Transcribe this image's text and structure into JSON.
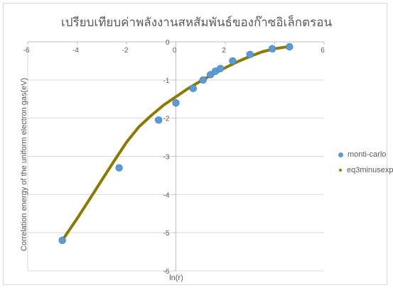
{
  "chart_data": {
    "type": "scatter",
    "title": "เปรียบเทียบค่าพลังงานสหสัมพันธ์ของก๊าซอิเล็กตรอน",
    "xlabel": "ln(r)",
    "ylabel": "Correlation energy of the uniform electron gas(eV)",
    "xlim": [
      -6,
      6
    ],
    "ylim": [
      -6,
      0
    ],
    "x_ticks": [
      -6,
      -4,
      -2,
      0,
      2,
      4,
      6
    ],
    "y_ticks": [
      0,
      -1,
      -2,
      -3,
      -4,
      -5,
      -6
    ],
    "grid": "horizontal",
    "legend_position": "right",
    "series": [
      {
        "name": "monti-carlo",
        "color": "#5b9bd5",
        "marker": "circle",
        "x": [
          -4.6,
          -2.3,
          -0.7,
          0.0,
          0.7,
          1.1,
          1.4,
          1.6,
          1.8,
          2.3,
          3.0,
          3.9,
          4.6
        ],
        "y": [
          -5.2,
          -3.3,
          -2.05,
          -1.6,
          -1.22,
          -1.0,
          -0.86,
          -0.77,
          -0.7,
          -0.5,
          -0.33,
          -0.18,
          -0.13
        ]
      },
      {
        "name": "eq3minusexp",
        "color": "#8c7a00",
        "marker": "line",
        "x": [
          -4.6,
          -4.0,
          -3.5,
          -3.0,
          -2.5,
          -2.0,
          -1.5,
          -1.0,
          -0.5,
          0.0,
          0.5,
          1.0,
          1.5,
          2.0,
          2.5,
          3.0,
          3.5,
          4.0,
          4.6
        ],
        "y": [
          -5.2,
          -4.63,
          -4.13,
          -3.62,
          -3.12,
          -2.63,
          -2.23,
          -1.93,
          -1.66,
          -1.44,
          -1.22,
          -1.03,
          -0.85,
          -0.68,
          -0.52,
          -0.38,
          -0.26,
          -0.18,
          -0.12
        ]
      }
    ]
  }
}
